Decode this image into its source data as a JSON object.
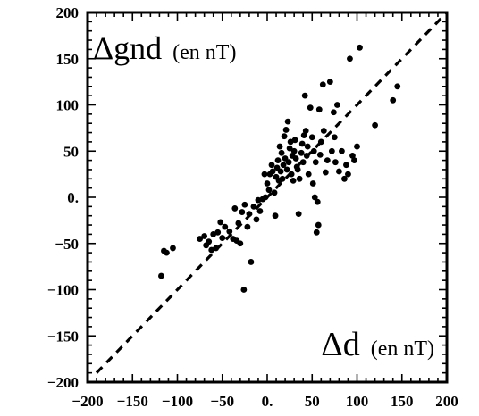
{
  "chart_data": {
    "type": "scatter",
    "title": "",
    "xlim": [
      -200,
      200
    ],
    "ylim": [
      -200,
      200
    ],
    "x_ticks": [
      {
        "value": -200,
        "label": "−200"
      },
      {
        "value": -150,
        "label": "−150"
      },
      {
        "value": -100,
        "label": "−100"
      },
      {
        "value": -50,
        "label": "−50"
      },
      {
        "value": 0,
        "label": "0."
      },
      {
        "value": 50,
        "label": "50"
      },
      {
        "value": 100,
        "label": "100"
      },
      {
        "value": 150,
        "label": "150"
      },
      {
        "value": 200,
        "label": "200"
      }
    ],
    "y_ticks": [
      {
        "value": 200,
        "label": "200"
      },
      {
        "value": 150,
        "label": "150"
      },
      {
        "value": 100,
        "label": "100"
      },
      {
        "value": 50,
        "label": "50"
      },
      {
        "value": 0,
        "label": "0."
      },
      {
        "value": -50,
        "label": "−50"
      },
      {
        "value": -100,
        "label": "−100"
      },
      {
        "value": -150,
        "label": "−150"
      },
      {
        "value": -200,
        "label": "−200"
      }
    ],
    "y_annotation": {
      "symbol": "Δgnd",
      "unit": "(en nT)"
    },
    "x_annotation": {
      "symbol": "Δd",
      "unit": "(en nT)"
    },
    "reference_line": {
      "style": "dashed",
      "from": [
        -190,
        -190
      ],
      "to": [
        200,
        200
      ]
    },
    "grid": false,
    "marker_color": "#000000",
    "points": [
      [
        -118,
        -85
      ],
      [
        -115,
        -58
      ],
      [
        -112,
        -60
      ],
      [
        -105,
        -55
      ],
      [
        -75,
        -45
      ],
      [
        -70,
        -42
      ],
      [
        -68,
        -52
      ],
      [
        -65,
        -48
      ],
      [
        -62,
        -57
      ],
      [
        -60,
        -40
      ],
      [
        -57,
        -55
      ],
      [
        -55,
        -38
      ],
      [
        -52,
        -27
      ],
      [
        -50,
        -44
      ],
      [
        -47,
        -32
      ],
      [
        -42,
        -37
      ],
      [
        -38,
        -45
      ],
      [
        -36,
        -12
      ],
      [
        -34,
        -47
      ],
      [
        -32,
        -28
      ],
      [
        -30,
        -50
      ],
      [
        -28,
        -16
      ],
      [
        -26,
        -100
      ],
      [
        -25,
        -8
      ],
      [
        -22,
        -32
      ],
      [
        -20,
        -18
      ],
      [
        -18,
        -70
      ],
      [
        -15,
        -10
      ],
      [
        -12,
        -24
      ],
      [
        -10,
        -3
      ],
      [
        -8,
        -15
      ],
      [
        -5,
        -2
      ],
      [
        -3,
        25
      ],
      [
        -2,
        0
      ],
      [
        0,
        15
      ],
      [
        2,
        8
      ],
      [
        3,
        25
      ],
      [
        5,
        35
      ],
      [
        6,
        28
      ],
      [
        8,
        5
      ],
      [
        9,
        -20
      ],
      [
        10,
        22
      ],
      [
        11,
        32
      ],
      [
        12,
        40
      ],
      [
        13,
        18
      ],
      [
        14,
        55
      ],
      [
        15,
        28
      ],
      [
        16,
        48
      ],
      [
        17,
        20
      ],
      [
        18,
        35
      ],
      [
        19,
        66
      ],
      [
        20,
        42
      ],
      [
        21,
        73
      ],
      [
        22,
        30
      ],
      [
        23,
        82
      ],
      [
        24,
        38
      ],
      [
        25,
        53
      ],
      [
        26,
        60
      ],
      [
        27,
        25
      ],
      [
        28,
        45
      ],
      [
        29,
        18
      ],
      [
        30,
        50
      ],
      [
        31,
        62
      ],
      [
        32,
        42
      ],
      [
        33,
        33
      ],
      [
        34,
        30
      ],
      [
        35,
        -18
      ],
      [
        36,
        20
      ],
      [
        38,
        48
      ],
      [
        39,
        58
      ],
      [
        40,
        38
      ],
      [
        41,
        67
      ],
      [
        42,
        110
      ],
      [
        43,
        72
      ],
      [
        44,
        45
      ],
      [
        45,
        55
      ],
      [
        46,
        25
      ],
      [
        48,
        97
      ],
      [
        50,
        65
      ],
      [
        51,
        15
      ],
      [
        52,
        50
      ],
      [
        53,
        0
      ],
      [
        54,
        38
      ],
      [
        55,
        -38
      ],
      [
        56,
        -5
      ],
      [
        57,
        -30
      ],
      [
        58,
        95
      ],
      [
        59,
        46
      ],
      [
        60,
        60
      ],
      [
        62,
        122
      ],
      [
        63,
        72
      ],
      [
        65,
        27
      ],
      [
        67,
        40
      ],
      [
        70,
        125
      ],
      [
        72,
        50
      ],
      [
        74,
        92
      ],
      [
        75,
        65
      ],
      [
        76,
        38
      ],
      [
        78,
        100
      ],
      [
        80,
        28
      ],
      [
        83,
        50
      ],
      [
        86,
        20
      ],
      [
        88,
        35
      ],
      [
        90,
        25
      ],
      [
        92,
        150
      ],
      [
        95,
        45
      ],
      [
        97,
        40
      ],
      [
        100,
        55
      ],
      [
        103,
        162
      ],
      [
        120,
        78
      ],
      [
        140,
        105
      ],
      [
        145,
        120
      ]
    ]
  }
}
